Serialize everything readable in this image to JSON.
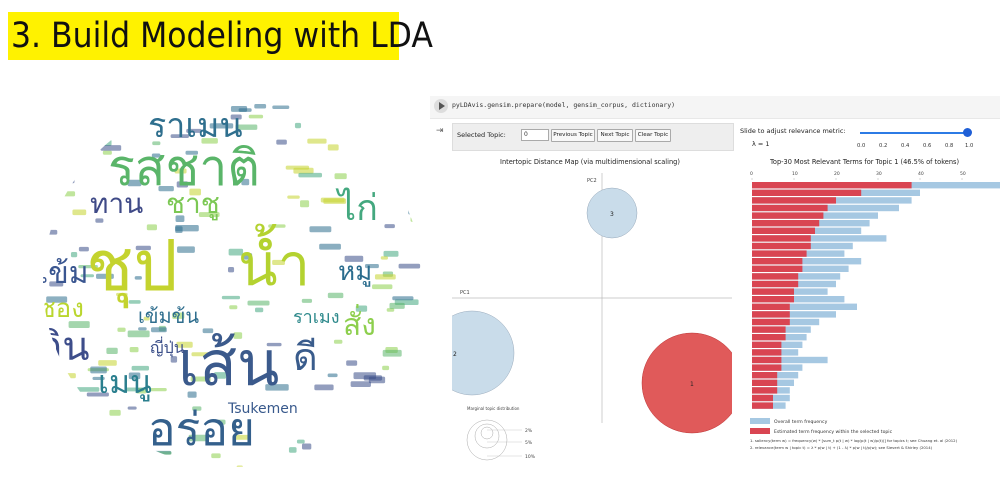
{
  "slide": {
    "title": "3. Build Modeling with LDA"
  },
  "wordcloud": {
    "words": [
      {
        "text": "ชุป",
        "color": "#c4d32e",
        "size": 70
      },
      {
        "text": "เส้น",
        "color": "#3b5a8c",
        "size": 62
      },
      {
        "text": "น้ำ",
        "color": "#b4d230",
        "size": 58
      },
      {
        "text": "รสชาติ",
        "color": "#5ab569",
        "size": 50
      },
      {
        "text": "อร่อย",
        "color": "#34608c",
        "size": 46
      },
      {
        "text": "ราเมน",
        "color": "#2f6f8e",
        "size": 34
      },
      {
        "text": "กิน",
        "color": "#3d4d8a",
        "size": 40
      },
      {
        "text": "เมนู",
        "color": "#2b7f8e",
        "size": 32
      },
      {
        "text": "ทาน",
        "color": "#3f4a87",
        "size": 28
      },
      {
        "text": "ชาชู",
        "color": "#7cc854",
        "size": 28
      },
      {
        "text": "ไก่",
        "color": "#44a87f",
        "size": 36
      },
      {
        "text": "หมู",
        "color": "#2a6c8d",
        "size": 26
      },
      {
        "text": "สั่ง",
        "color": "#8dcf4d",
        "size": 30
      },
      {
        "text": "เข้ม",
        "color": "#3a5690",
        "size": 30
      },
      {
        "text": "ดี",
        "color": "#3a5c8c",
        "size": 38
      },
      {
        "text": "ซอง",
        "color": "#bad62e",
        "size": 26
      },
      {
        "text": "เข้มข้น",
        "color": "#2f6e8e",
        "size": 20
      },
      {
        "text": "ญี่ปุ่น",
        "color": "#3b4f89",
        "size": 16
      },
      {
        "text": "Tsukemen",
        "color": "#38598c",
        "size": 14
      },
      {
        "text": "ราเมง",
        "color": "#2f8a8c",
        "size": 18
      }
    ]
  },
  "notebook": {
    "code": "pyLDAvis.gensim.prepare(model, gensim_corpus, dictionary)",
    "controls": {
      "selected_topic_label": "Selected Topic:",
      "selected_topic_value": "0",
      "prev_label": "Previous Topic",
      "next_label": "Next Topic",
      "clear_label": "Clear Topic",
      "slider_label": "Slide to adjust relevance metric:",
      "lambda_label": "λ = 1",
      "ticks": [
        "0.0",
        "0.2",
        "0.4",
        "0.6",
        "0.8",
        "1.0"
      ]
    },
    "mds": {
      "title": "Intertopic Distance Map (via multidimensional scaling)",
      "pc1": "PC1",
      "pc2": "PC2",
      "topics": [
        {
          "label": "1",
          "color": "#e05a5a",
          "size_rank": 1
        },
        {
          "label": "2",
          "color": "#c9dcea",
          "size_rank": 2
        },
        {
          "label": "3",
          "color": "#c9dcea",
          "size_rank": 3
        }
      ],
      "marginal_title": "Marginal topic distribution",
      "marginal_labels": [
        "2%",
        "5%",
        "10%"
      ]
    },
    "bars": {
      "title": "Top-30 Most Relevant Terms for Topic 1 (46.5% of tokens)",
      "axis_ticks": [
        "0",
        "10",
        "20",
        "30",
        "40",
        "50"
      ],
      "overall_legend": "Overall term frequency",
      "estimated_legend": "Estimated term frequency within the selected topic",
      "note1": "1. saliency(term w) = frequency(w) * [sum_t p(t | w) * log(p(t | w)/p(t))] for topics t; see Chuang et. al (2012)",
      "note2": "2. relevance(term w | topic t) = λ * p(w | t) + (1 - λ) * p(w | t)/p(w); see Sievert & Shirley (2014)",
      "overall_color": "#a6c8e2",
      "estimated_color": "#d94552"
    }
  }
}
